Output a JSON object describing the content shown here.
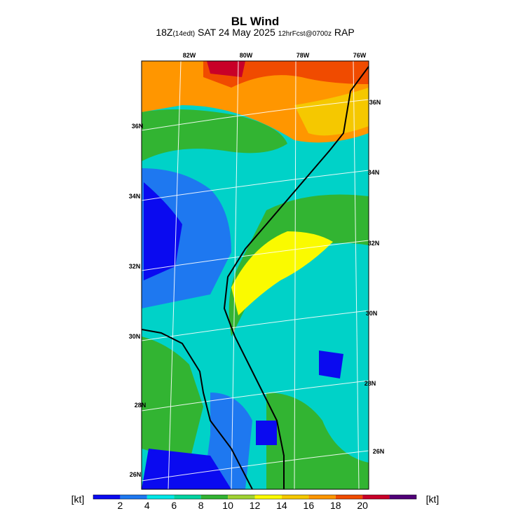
{
  "header": {
    "title": "BL Wind",
    "subtitle": [
      "18Z",
      "(14edt)",
      " SAT 24 May 2025 ",
      "12hrFcst@0700z",
      " RAP"
    ]
  },
  "map": {
    "lon_labels": [
      "82W",
      "80W",
      "78W",
      "76W"
    ],
    "lat_labels_left": [
      "36N",
      "34N",
      "32N",
      "30N",
      "28N",
      "26N"
    ],
    "lat_labels_right": [
      "36N",
      "34N",
      "32N",
      "30N",
      "28N",
      "26N"
    ]
  },
  "colorbar": {
    "unit_left": "[kt]",
    "unit_right": "[kt]",
    "ticks": [
      2,
      4,
      6,
      8,
      10,
      12,
      14,
      16,
      18,
      20
    ],
    "colors": [
      "#0a0af0",
      "#1e78f0",
      "#00e6e6",
      "#00d2a0",
      "#32b432",
      "#a0d232",
      "#fafa00",
      "#f5c800",
      "#ff9600",
      "#f04b00",
      "#c80028",
      "#500078"
    ]
  }
}
